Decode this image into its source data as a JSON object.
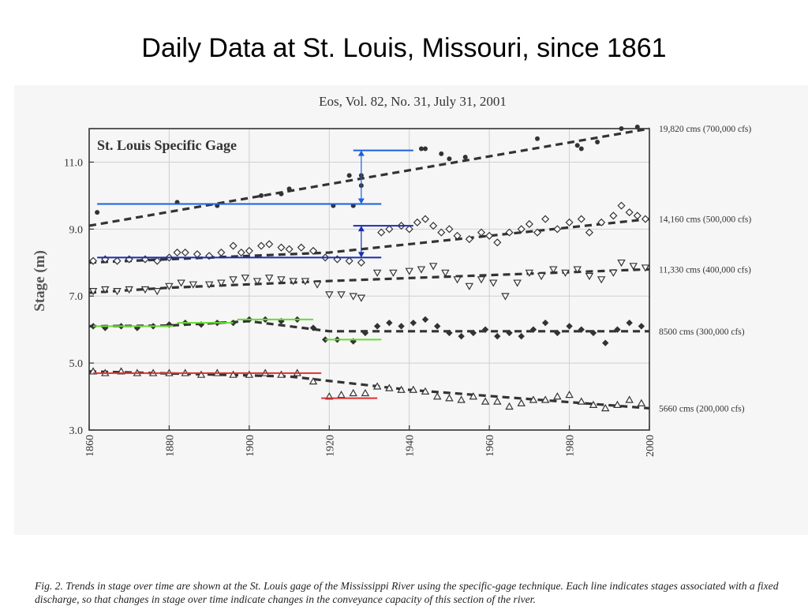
{
  "slide": {
    "title": "Daily Data at St. Louis, Missouri, since 1861"
  },
  "figure": {
    "header": "Eos, Vol. 82, No. 31, July 31, 2001",
    "caption": "Fig. 2. Trends in stage over time are shown at the St. Louis gage of the Mississippi River using the specific-gage technique. Each line indicates stages associated with a fixed discharge, so that changes in stage over time indicate changes in the conveyance capacity of this section of the river."
  },
  "colors": {
    "ink": "#333333",
    "grid": "#d0d0d0",
    "annot_blue": "#1a5fe0",
    "annot_navy": "#1a2fb0",
    "annot_green": "#66dd33",
    "annot_red": "#e03030"
  },
  "chart_data": {
    "type": "scatter",
    "title": "St. Louis Specific Gage",
    "ylabel": "Stage (m)",
    "xlabel": "",
    "xlim": [
      1860,
      2000
    ],
    "ylim": [
      3.0,
      12.0
    ],
    "xticks": [
      1860,
      1880,
      1900,
      1920,
      1940,
      1960,
      1980,
      2000
    ],
    "xtick_labels": [
      "1860",
      "1880",
      "1900",
      "1920",
      "1940",
      "1960",
      "1980",
      "2000"
    ],
    "yticks": [
      3.0,
      5.0,
      7.0,
      9.0,
      11.0
    ],
    "ytick_labels": [
      "3.0",
      "5.0",
      "7.0",
      "9.0",
      "11.0"
    ],
    "grid": true,
    "series": [
      {
        "name": "19,820 cms (700,000 cfs)",
        "marker": "circle",
        "trend": [
          [
            1860,
            9.1
          ],
          [
            2000,
            12.0
          ]
        ],
        "points": [
          [
            1862,
            9.5
          ],
          [
            1882,
            9.8
          ],
          [
            1892,
            9.7
          ],
          [
            1903,
            10.0
          ],
          [
            1908,
            10.05
          ],
          [
            1910,
            10.2
          ],
          [
            1921,
            9.7
          ],
          [
            1925,
            10.6
          ],
          [
            1926,
            9.7
          ],
          [
            1928,
            10.3
          ],
          [
            1928,
            10.6
          ],
          [
            1943,
            11.4
          ],
          [
            1944,
            11.4
          ],
          [
            1948,
            11.25
          ],
          [
            1950,
            11.1
          ],
          [
            1954,
            11.15
          ],
          [
            1972,
            11.7
          ],
          [
            1982,
            11.5
          ],
          [
            1983,
            11.4
          ],
          [
            1987,
            11.6
          ],
          [
            1993,
            12.0
          ],
          [
            1997,
            12.05
          ]
        ]
      },
      {
        "name": "14,160 cms (500,000 cfs)",
        "marker": "diamond",
        "trend": [
          [
            1860,
            8.0
          ],
          [
            1900,
            8.2
          ],
          [
            1920,
            8.3
          ],
          [
            2000,
            9.3
          ]
        ],
        "points": [
          [
            1861,
            8.05
          ],
          [
            1864,
            8.1
          ],
          [
            1867,
            8.05
          ],
          [
            1870,
            8.1
          ],
          [
            1874,
            8.1
          ],
          [
            1877,
            8.05
          ],
          [
            1880,
            8.15
          ],
          [
            1882,
            8.3
          ],
          [
            1884,
            8.3
          ],
          [
            1887,
            8.25
          ],
          [
            1890,
            8.2
          ],
          [
            1893,
            8.3
          ],
          [
            1896,
            8.5
          ],
          [
            1898,
            8.3
          ],
          [
            1900,
            8.35
          ],
          [
            1903,
            8.5
          ],
          [
            1905,
            8.55
          ],
          [
            1908,
            8.45
          ],
          [
            1910,
            8.4
          ],
          [
            1913,
            8.45
          ],
          [
            1916,
            8.35
          ],
          [
            1919,
            8.15
          ],
          [
            1922,
            8.1
          ],
          [
            1925,
            8.05
          ],
          [
            1928,
            8.0
          ],
          [
            1933,
            8.9
          ],
          [
            1935,
            9.0
          ],
          [
            1938,
            9.1
          ],
          [
            1940,
            9.0
          ],
          [
            1942,
            9.2
          ],
          [
            1944,
            9.3
          ],
          [
            1946,
            9.1
          ],
          [
            1948,
            8.9
          ],
          [
            1950,
            9.0
          ],
          [
            1952,
            8.8
          ],
          [
            1955,
            8.7
          ],
          [
            1958,
            8.9
          ],
          [
            1960,
            8.8
          ],
          [
            1962,
            8.6
          ],
          [
            1965,
            8.9
          ],
          [
            1968,
            9.0
          ],
          [
            1970,
            9.15
          ],
          [
            1972,
            8.9
          ],
          [
            1974,
            9.3
          ],
          [
            1977,
            9.0
          ],
          [
            1980,
            9.2
          ],
          [
            1983,
            9.3
          ],
          [
            1985,
            8.9
          ],
          [
            1988,
            9.2
          ],
          [
            1991,
            9.4
          ],
          [
            1993,
            9.7
          ],
          [
            1995,
            9.5
          ],
          [
            1997,
            9.4
          ],
          [
            1999,
            9.3
          ]
        ]
      },
      {
        "name": "11,330 cms (400,000 cfs)",
        "marker": "triangle-down",
        "trend": [
          [
            1860,
            7.1
          ],
          [
            1880,
            7.25
          ],
          [
            1920,
            7.45
          ],
          [
            2000,
            7.8
          ]
        ],
        "points": [
          [
            1861,
            7.15
          ],
          [
            1864,
            7.2
          ],
          [
            1867,
            7.15
          ],
          [
            1870,
            7.2
          ],
          [
            1874,
            7.2
          ],
          [
            1877,
            7.15
          ],
          [
            1880,
            7.3
          ],
          [
            1883,
            7.4
          ],
          [
            1886,
            7.35
          ],
          [
            1890,
            7.35
          ],
          [
            1893,
            7.4
          ],
          [
            1896,
            7.5
          ],
          [
            1899,
            7.55
          ],
          [
            1902,
            7.45
          ],
          [
            1905,
            7.55
          ],
          [
            1908,
            7.5
          ],
          [
            1911,
            7.45
          ],
          [
            1914,
            7.45
          ],
          [
            1917,
            7.35
          ],
          [
            1920,
            7.05
          ],
          [
            1923,
            7.05
          ],
          [
            1926,
            7.0
          ],
          [
            1928,
            6.95
          ],
          [
            1932,
            7.7
          ],
          [
            1936,
            7.7
          ],
          [
            1940,
            7.75
          ],
          [
            1943,
            7.8
          ],
          [
            1946,
            7.9
          ],
          [
            1949,
            7.7
          ],
          [
            1952,
            7.5
          ],
          [
            1955,
            7.3
          ],
          [
            1958,
            7.5
          ],
          [
            1961,
            7.4
          ],
          [
            1964,
            7.0
          ],
          [
            1967,
            7.4
          ],
          [
            1970,
            7.7
          ],
          [
            1973,
            7.6
          ],
          [
            1976,
            7.8
          ],
          [
            1979,
            7.7
          ],
          [
            1982,
            7.8
          ],
          [
            1985,
            7.6
          ],
          [
            1988,
            7.5
          ],
          [
            1991,
            7.7
          ],
          [
            1993,
            8.0
          ],
          [
            1996,
            7.9
          ],
          [
            1999,
            7.85
          ]
        ]
      },
      {
        "name": "8500 cms (300,000 cfs)",
        "marker": "diamond-filled",
        "trend": [
          [
            1860,
            6.1
          ],
          [
            1880,
            6.12
          ],
          [
            1900,
            6.25
          ],
          [
            1920,
            5.95
          ],
          [
            2000,
            5.95
          ]
        ],
        "points": [
          [
            1861,
            6.1
          ],
          [
            1864,
            6.05
          ],
          [
            1868,
            6.1
          ],
          [
            1872,
            6.05
          ],
          [
            1876,
            6.1
          ],
          [
            1880,
            6.15
          ],
          [
            1884,
            6.2
          ],
          [
            1888,
            6.15
          ],
          [
            1892,
            6.2
          ],
          [
            1896,
            6.2
          ],
          [
            1900,
            6.3
          ],
          [
            1904,
            6.3
          ],
          [
            1908,
            6.25
          ],
          [
            1912,
            6.3
          ],
          [
            1916,
            6.05
          ],
          [
            1919,
            5.7
          ],
          [
            1922,
            5.7
          ],
          [
            1926,
            5.65
          ],
          [
            1929,
            5.9
          ],
          [
            1932,
            6.1
          ],
          [
            1935,
            6.2
          ],
          [
            1938,
            6.1
          ],
          [
            1941,
            6.2
          ],
          [
            1944,
            6.3
          ],
          [
            1947,
            6.1
          ],
          [
            1950,
            5.9
          ],
          [
            1953,
            5.8
          ],
          [
            1956,
            5.9
          ],
          [
            1959,
            6.0
          ],
          [
            1962,
            5.8
          ],
          [
            1965,
            5.9
          ],
          [
            1968,
            5.8
          ],
          [
            1971,
            6.0
          ],
          [
            1974,
            6.2
          ],
          [
            1977,
            5.9
          ],
          [
            1980,
            6.1
          ],
          [
            1983,
            6.0
          ],
          [
            1986,
            5.9
          ],
          [
            1989,
            5.6
          ],
          [
            1992,
            6.0
          ],
          [
            1995,
            6.2
          ],
          [
            1998,
            6.1
          ]
        ]
      },
      {
        "name": "5660 cms (200,000 cfs)",
        "marker": "triangle-up",
        "trend": [
          [
            1860,
            4.75
          ],
          [
            1910,
            4.6
          ],
          [
            1940,
            4.2
          ],
          [
            2000,
            3.65
          ]
        ],
        "points": [
          [
            1861,
            4.75
          ],
          [
            1864,
            4.7
          ],
          [
            1868,
            4.75
          ],
          [
            1872,
            4.7
          ],
          [
            1876,
            4.7
          ],
          [
            1880,
            4.7
          ],
          [
            1884,
            4.7
          ],
          [
            1888,
            4.65
          ],
          [
            1892,
            4.7
          ],
          [
            1896,
            4.65
          ],
          [
            1900,
            4.65
          ],
          [
            1904,
            4.7
          ],
          [
            1908,
            4.65
          ],
          [
            1912,
            4.7
          ],
          [
            1916,
            4.45
          ],
          [
            1920,
            4.0
          ],
          [
            1923,
            4.05
          ],
          [
            1926,
            4.1
          ],
          [
            1929,
            4.1
          ],
          [
            1932,
            4.3
          ],
          [
            1935,
            4.25
          ],
          [
            1938,
            4.2
          ],
          [
            1941,
            4.2
          ],
          [
            1944,
            4.15
          ],
          [
            1947,
            4.0
          ],
          [
            1950,
            3.95
          ],
          [
            1953,
            3.9
          ],
          [
            1956,
            4.0
          ],
          [
            1959,
            3.85
          ],
          [
            1962,
            3.85
          ],
          [
            1965,
            3.7
          ],
          [
            1968,
            3.8
          ],
          [
            1971,
            3.9
          ],
          [
            1974,
            3.9
          ],
          [
            1977,
            4.0
          ],
          [
            1980,
            4.05
          ],
          [
            1983,
            3.85
          ],
          [
            1986,
            3.75
          ],
          [
            1989,
            3.65
          ],
          [
            1992,
            3.75
          ],
          [
            1995,
            3.9
          ],
          [
            1998,
            3.8
          ]
        ]
      }
    ],
    "annotations": [
      {
        "type": "hline",
        "color": "#1a5fe0",
        "x0": 1862,
        "x1": 1933,
        "y": 9.75
      },
      {
        "type": "hline",
        "color": "#1a5fe0",
        "x0": 1926,
        "x1": 1941,
        "y": 11.35
      },
      {
        "type": "arrow",
        "color": "#1a5fe0",
        "x": 1928,
        "y0": 9.75,
        "y1": 11.35
      },
      {
        "type": "hline",
        "color": "#1a2fb0",
        "x0": 1862,
        "x1": 1933,
        "y": 8.15
      },
      {
        "type": "hline",
        "color": "#1a2fb0",
        "x0": 1926,
        "x1": 1941,
        "y": 9.1
      },
      {
        "type": "arrow",
        "color": "#1a2fb0",
        "x": 1928,
        "y0": 8.15,
        "y1": 9.1
      },
      {
        "type": "hline",
        "color": "#66dd33",
        "x0": 1861,
        "x1": 1881,
        "y": 6.1
      },
      {
        "type": "hline",
        "color": "#66dd33",
        "x0": 1882,
        "x1": 1896,
        "y": 6.2
      },
      {
        "type": "hline",
        "color": "#66dd33",
        "x0": 1897,
        "x1": 1916,
        "y": 6.3
      },
      {
        "type": "hline",
        "color": "#66dd33",
        "x0": 1919,
        "x1": 1933,
        "y": 5.7
      },
      {
        "type": "hline",
        "color": "#e03030",
        "x0": 1861,
        "x1": 1918,
        "y": 4.7
      },
      {
        "type": "hline",
        "color": "#e03030",
        "x0": 1918,
        "x1": 1932,
        "y": 3.95
      }
    ]
  }
}
